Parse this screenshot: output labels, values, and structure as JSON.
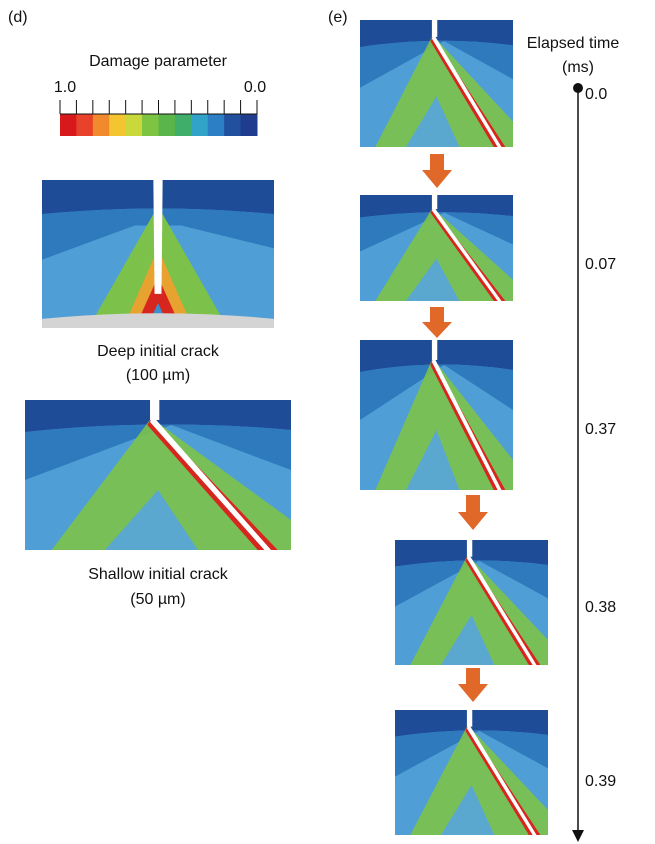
{
  "panel_d": {
    "label": "(d)",
    "colorbar": {
      "title": "Damage parameter",
      "max_label": "1.0",
      "min_label": "0.0"
    },
    "images": [
      {
        "caption": "Deep initial crack",
        "size": "(100 µm)"
      },
      {
        "caption": "Shallow initial crack",
        "size": "(50 µm)"
      }
    ]
  },
  "panel_e": {
    "label": "(e)",
    "axis_title": "Elapsed time",
    "axis_unit": "(ms)",
    "times": [
      "0.0",
      "0.07",
      "0.37",
      "0.38",
      "0.39"
    ]
  }
}
